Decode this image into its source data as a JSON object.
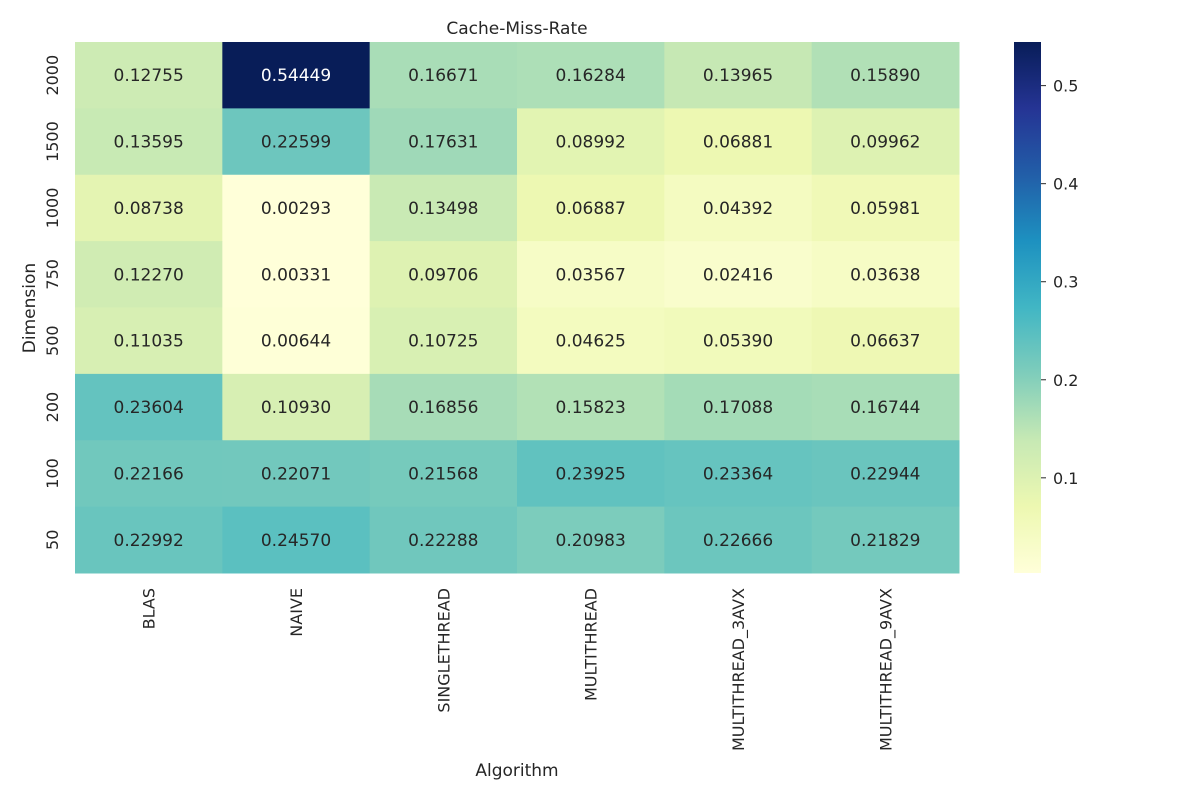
{
  "chart_data": {
    "type": "heatmap",
    "title": "Cache-Miss-Rate",
    "xlabel": "Algorithm",
    "ylabel": "Dimension",
    "x_categories": [
      "BLAS",
      "NAIVE",
      "SINGLETHREAD",
      "MULTITHREAD",
      "MULTITHREAD_3AVX",
      "MULTITHREAD_9AVX"
    ],
    "y_categories": [
      "2000",
      "1500",
      "1000",
      "750",
      "500",
      "200",
      "100",
      "50"
    ],
    "values": [
      [
        0.12755,
        0.54449,
        0.16671,
        0.16284,
        0.13965,
        0.1589
      ],
      [
        0.13595,
        0.22599,
        0.17631,
        0.08992,
        0.06881,
        0.09962
      ],
      [
        0.08738,
        0.00293,
        0.13498,
        0.06887,
        0.04392,
        0.05981
      ],
      [
        0.1227,
        0.00331,
        0.09706,
        0.03567,
        0.02416,
        0.03638
      ],
      [
        0.11035,
        0.00644,
        0.10725,
        0.04625,
        0.0539,
        0.06637
      ],
      [
        0.23604,
        0.1093,
        0.16856,
        0.15823,
        0.17088,
        0.16744
      ],
      [
        0.22166,
        0.22071,
        0.21568,
        0.23925,
        0.23364,
        0.22944
      ],
      [
        0.22992,
        0.2457,
        0.22288,
        0.20983,
        0.22666,
        0.21829
      ]
    ],
    "colormap": "YlGnBu",
    "colormap_stops": [
      "#ffffd9",
      "#edf8b1",
      "#c7e9b4",
      "#7fcdbb",
      "#41b6c4",
      "#1d91c0",
      "#225ea8",
      "#253494",
      "#081d58"
    ],
    "color_range": [
      0.00293,
      0.54449
    ],
    "colorbar_ticks": [
      "0.1",
      "0.2",
      "0.3",
      "0.4",
      "0.5"
    ],
    "annotations": true,
    "value_format": "5 decimals",
    "legend_placement": "right (colorbar)"
  }
}
